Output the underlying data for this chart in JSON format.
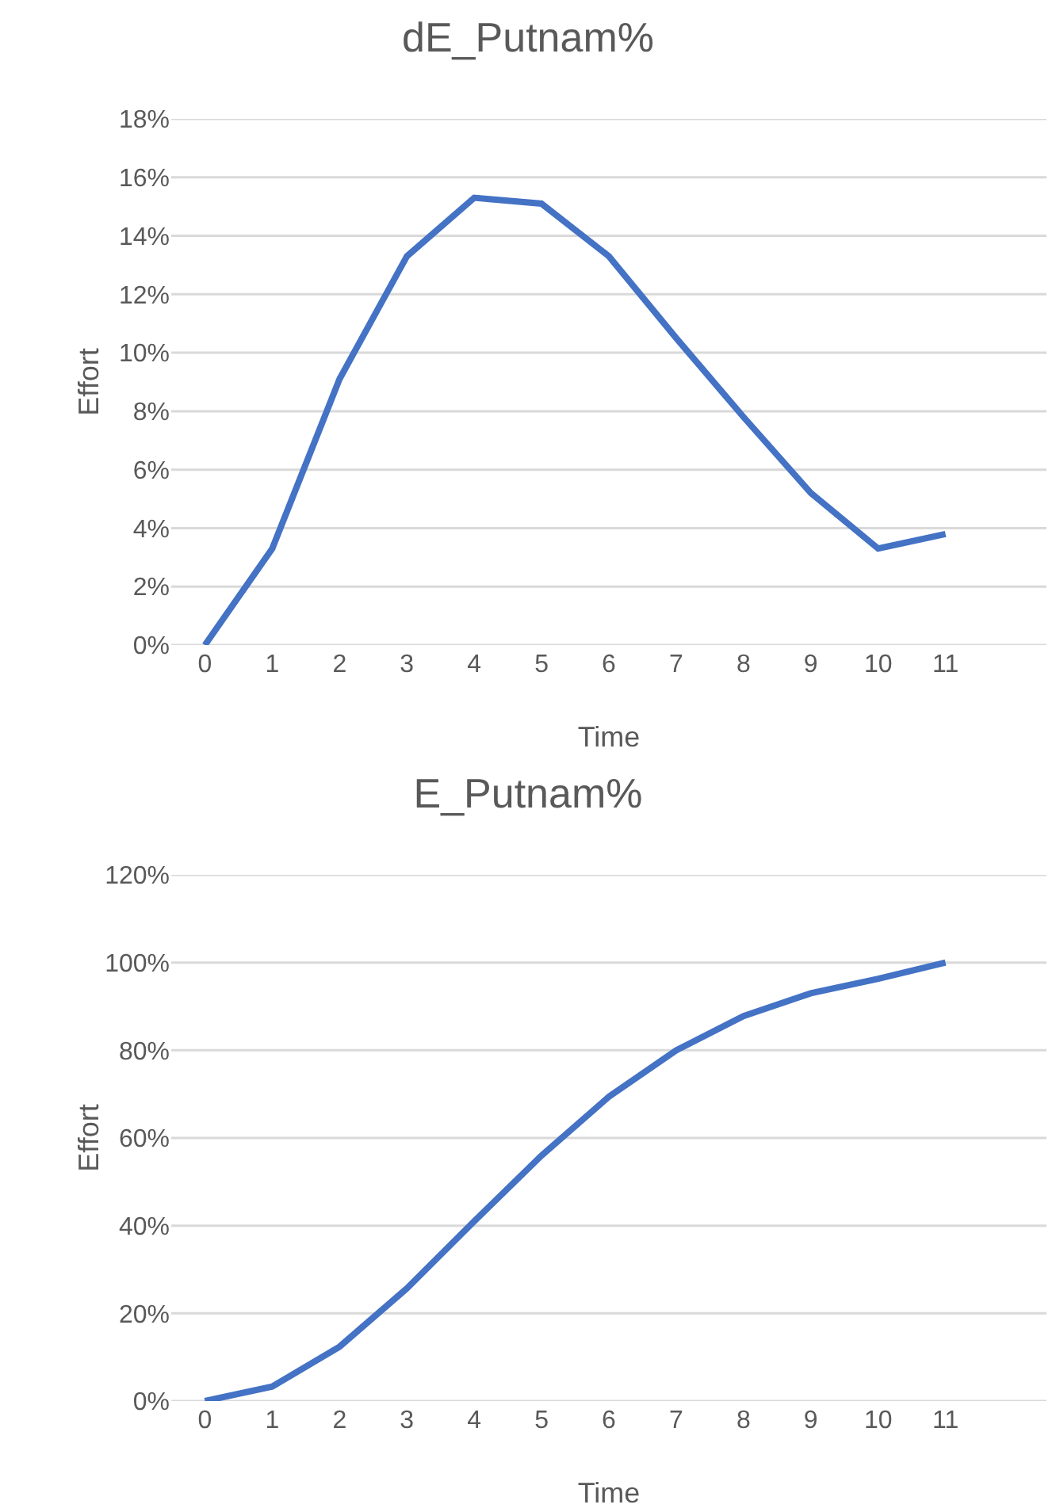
{
  "chart_data": [
    {
      "type": "line",
      "title": "dE_Putnam%",
      "xlabel": "Time",
      "ylabel": "Effort",
      "categories": [
        "0",
        "1",
        "2",
        "3",
        "4",
        "5",
        "6",
        "7",
        "8",
        "9",
        "10",
        "11"
      ],
      "series": [
        {
          "color": "#4472c4",
          "values": [
            0,
            3.3,
            9.1,
            13.3,
            15.3,
            15.1,
            13.3,
            10.5,
            7.8,
            5.2,
            3.3,
            3.8
          ]
        }
      ],
      "ylim": [
        0,
        18
      ],
      "yticks": [
        {
          "value": 0,
          "label": "0%"
        },
        {
          "value": 2,
          "label": "2%"
        },
        {
          "value": 4,
          "label": "4%"
        },
        {
          "value": 6,
          "label": "6%"
        },
        {
          "value": 8,
          "label": "8%"
        },
        {
          "value": 10,
          "label": "10%"
        },
        {
          "value": 12,
          "label": "12%"
        },
        {
          "value": 14,
          "label": "14%"
        },
        {
          "value": 16,
          "label": "16%"
        },
        {
          "value": 18,
          "label": "18%"
        }
      ],
      "grid": "y",
      "marker": "none",
      "line_style": "solid"
    },
    {
      "type": "line",
      "title": "E_Putnam%",
      "xlabel": "Time",
      "ylabel": "Effort",
      "categories": [
        "0",
        "1",
        "2",
        "3",
        "4",
        "5",
        "6",
        "7",
        "8",
        "9",
        "10",
        "11"
      ],
      "series": [
        {
          "color": "#4472c4",
          "values": [
            0,
            3.3,
            12.4,
            25.7,
            41,
            56,
            69.4,
            80,
            87.8,
            93,
            96.3,
            100
          ]
        }
      ],
      "ylim": [
        0,
        120
      ],
      "yticks": [
        {
          "value": 0,
          "label": "0%"
        },
        {
          "value": 20,
          "label": "20%"
        },
        {
          "value": 40,
          "label": "40%"
        },
        {
          "value": 60,
          "label": "60%"
        },
        {
          "value": 80,
          "label": "80%"
        },
        {
          "value": 100,
          "label": "100%"
        },
        {
          "value": 120,
          "label": "120%"
        }
      ],
      "grid": "y",
      "marker": "none",
      "line_style": "solid"
    }
  ]
}
